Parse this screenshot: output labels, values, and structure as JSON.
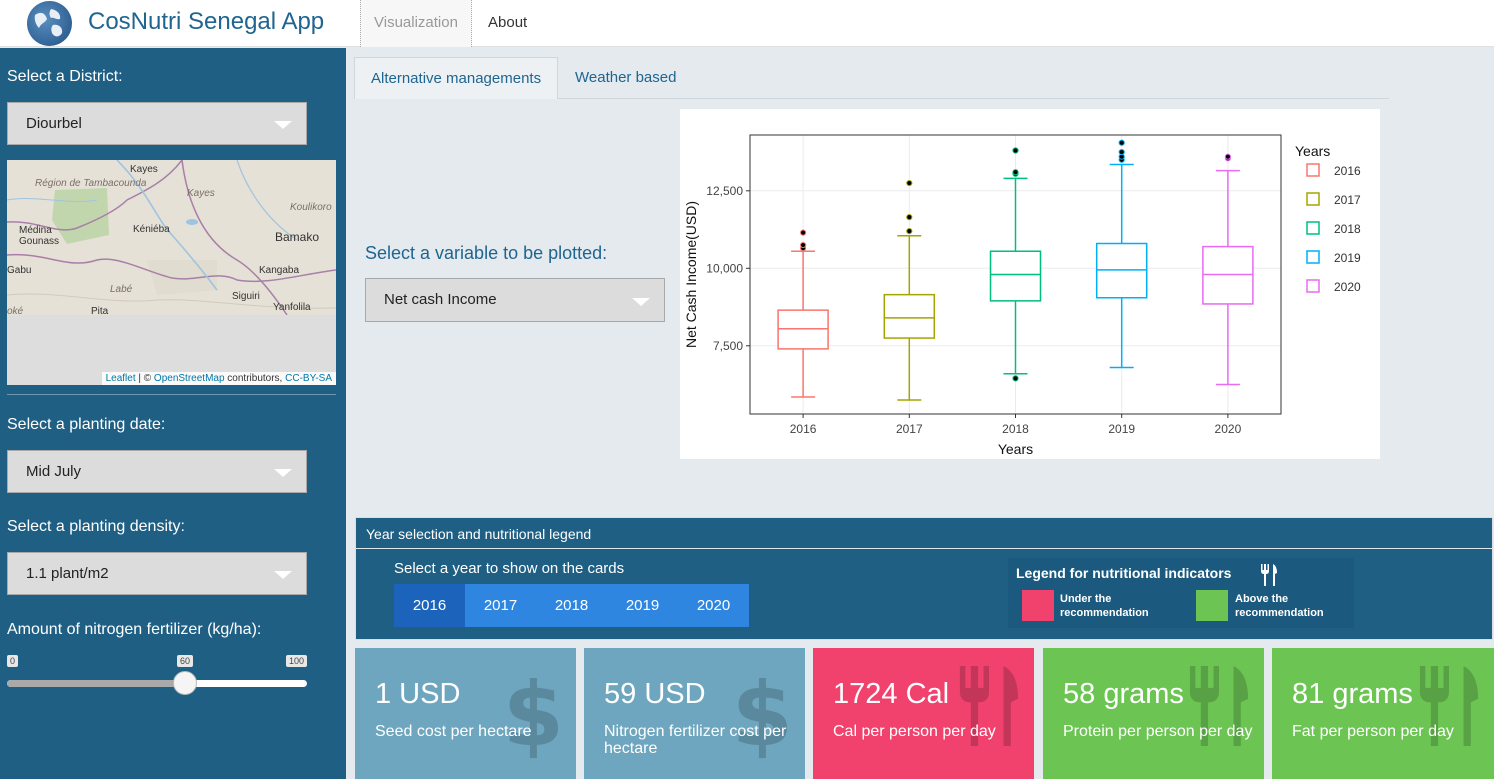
{
  "app": {
    "title": "CosNutri Senegal App"
  },
  "nav": {
    "tabs": [
      {
        "label": "Visualization"
      },
      {
        "label": "About"
      }
    ]
  },
  "sidebar": {
    "district_label": "Select a District:",
    "district_value": "Diourbel",
    "planting_date_label": "Select a planting date:",
    "planting_date_value": "Mid July",
    "density_label": "Select a planting density:",
    "density_value": "1.1 plant/m2",
    "nitrogen_label": "Amount of nitrogen fertilizer (kg/ha):",
    "nitrogen_slider": {
      "min": "0",
      "max": "100",
      "value": "60",
      "fraction": 0.6
    }
  },
  "map": {
    "labels": [
      {
        "text": "Région de Tambacounda",
        "italic": true
      },
      {
        "text": "Kayes",
        "italic": false
      },
      {
        "text": "Kayes",
        "italic": true
      },
      {
        "text": "Koulikoro",
        "italic": true
      },
      {
        "text": "Médina Gounass",
        "italic": false
      },
      {
        "text": "Kéniéba",
        "italic": false
      },
      {
        "text": "Bamako",
        "italic": false
      },
      {
        "text": "Gabu",
        "italic": false
      },
      {
        "text": "Kangaba",
        "italic": false
      },
      {
        "text": "Labé",
        "italic": true
      },
      {
        "text": "Siguiri",
        "italic": false
      },
      {
        "text": "Yanfolila",
        "italic": false
      },
      {
        "text": "Pita",
        "italic": false
      },
      {
        "text": "oké",
        "italic": true
      }
    ],
    "attribution": {
      "leaflet": "Leaflet",
      "sep": " | © ",
      "osm": "OpenStreetMap",
      "contrib": " contributors, ",
      "license": "CC-BY-SA"
    }
  },
  "main": {
    "tabs": [
      {
        "label": "Alternative managements"
      },
      {
        "label": "Weather based"
      }
    ],
    "variable_label": "Select a variable to be plotted:",
    "variable_value": "Net cash Income"
  },
  "chart_data": {
    "type": "boxplot",
    "xlabel": "Years",
    "ylabel": "Net Cash Income(USD)",
    "ylim": [
      5300,
      14300
    ],
    "yticks": [
      7500,
      10000,
      12500
    ],
    "ytick_labels": [
      "7,500",
      "10,000",
      "12,500"
    ],
    "legend_title": "Years",
    "legend_position": "right",
    "grid": true,
    "categories": [
      "2016",
      "2017",
      "2018",
      "2019",
      "2020"
    ],
    "colors": [
      "#f8766d",
      "#a3a500",
      "#00bf7d",
      "#00b0f6",
      "#e76bf3"
    ],
    "boxes": [
      {
        "name": "2016",
        "min": 5850,
        "q1": 7400,
        "median": 8050,
        "q3": 8650,
        "max": 10550,
        "outliers": [
          10650,
          10750,
          11150
        ]
      },
      {
        "name": "2017",
        "min": 5750,
        "q1": 7750,
        "median": 8400,
        "q3": 9150,
        "max": 11050,
        "outliers": [
          11200,
          11650,
          12750
        ]
      },
      {
        "name": "2018",
        "min": 6600,
        "q1": 8950,
        "median": 9800,
        "q3": 10550,
        "max": 12900,
        "outliers": [
          6450,
          13050,
          13100,
          13800
        ]
      },
      {
        "name": "2019",
        "min": 6800,
        "q1": 9050,
        "median": 9950,
        "q3": 10800,
        "max": 13350,
        "outliers": [
          13500,
          13600,
          13750,
          14050
        ]
      },
      {
        "name": "2020",
        "min": 6250,
        "q1": 8850,
        "median": 9800,
        "q3": 10700,
        "max": 13150,
        "outliers": [
          13550,
          13600
        ]
      }
    ]
  },
  "year_panel": {
    "title": "Year selection and nutritional legend",
    "subtitle": "Select a year to show on the cards",
    "years": [
      "2016",
      "2017",
      "2018",
      "2019",
      "2020"
    ],
    "selected_year": "2016",
    "legend": {
      "title": "Legend for nutritional indicators",
      "under": "Under the recommendation",
      "above": "Above the recommendation",
      "under_color": "#f0426d",
      "above_color": "#6cc553"
    }
  },
  "cards": [
    {
      "value": "1 USD",
      "label": "Seed cost per hectare",
      "icon": "dollar-icon",
      "color": "blue"
    },
    {
      "value": "59 USD",
      "label": "Nitrogen fertilizer cost per hectare",
      "icon": "dollar-icon",
      "color": "blue"
    },
    {
      "value": "1724 Cal",
      "label": "Cal per person per day",
      "icon": "utensils-icon",
      "color": "red"
    },
    {
      "value": "58 grams",
      "label": "Protein per person per day",
      "icon": "utensils-icon",
      "color": "green"
    },
    {
      "value": "81 grams",
      "label": "Fat per person per day",
      "icon": "utensils-icon",
      "color": "green"
    }
  ]
}
